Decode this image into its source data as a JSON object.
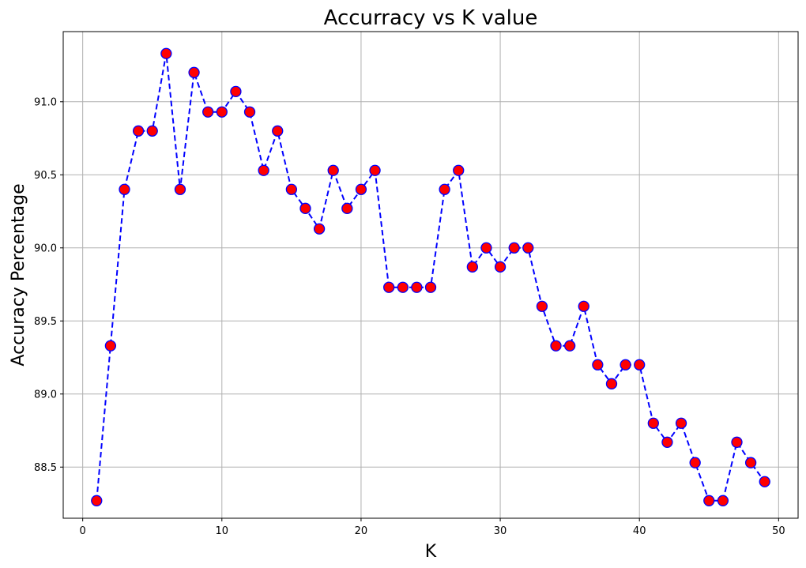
{
  "chart_data": {
    "type": "line",
    "title": "Accurracy vs K value",
    "xlabel": "K",
    "ylabel": "Accuracy Percentage",
    "xlim": [
      -1.4,
      51.4
    ],
    "ylim": [
      88.15,
      91.48
    ],
    "xticks": [
      0,
      10,
      20,
      30,
      40,
      50
    ],
    "yticks": [
      88.5,
      89.0,
      89.5,
      90.0,
      90.5,
      91.0
    ],
    "xtick_labels": [
      "0",
      "10",
      "20",
      "30",
      "40",
      "50"
    ],
    "ytick_labels": [
      "88.5",
      "89.0",
      "89.5",
      "90.0",
      "90.5",
      "91.0"
    ],
    "grid": true,
    "line_color": "#0000ff",
    "line_style": "dashed",
    "marker": "circle",
    "marker_face_color": "#ff0000",
    "marker_edge_color": "#0000ff",
    "x": [
      1,
      2,
      3,
      4,
      5,
      6,
      7,
      8,
      9,
      10,
      11,
      12,
      13,
      14,
      15,
      16,
      17,
      18,
      19,
      20,
      21,
      22,
      23,
      24,
      25,
      26,
      27,
      28,
      29,
      30,
      31,
      32,
      33,
      34,
      35,
      36,
      37,
      38,
      39,
      40,
      41,
      42,
      43,
      44,
      45,
      46,
      47,
      48,
      49
    ],
    "y": [
      88.27,
      89.33,
      90.4,
      90.8,
      90.8,
      91.33,
      90.4,
      91.2,
      90.93,
      90.93,
      91.07,
      90.93,
      90.53,
      90.8,
      90.4,
      90.27,
      90.13,
      90.53,
      90.27,
      90.4,
      90.53,
      89.73,
      89.73,
      89.73,
      89.73,
      90.4,
      90.53,
      89.87,
      90.0,
      89.87,
      90.0,
      90.0,
      89.6,
      89.33,
      89.33,
      89.6,
      89.2,
      89.07,
      89.2,
      89.2,
      88.8,
      88.67,
      88.8,
      88.53,
      88.27,
      88.27,
      88.67,
      88.53,
      88.4
    ]
  }
}
